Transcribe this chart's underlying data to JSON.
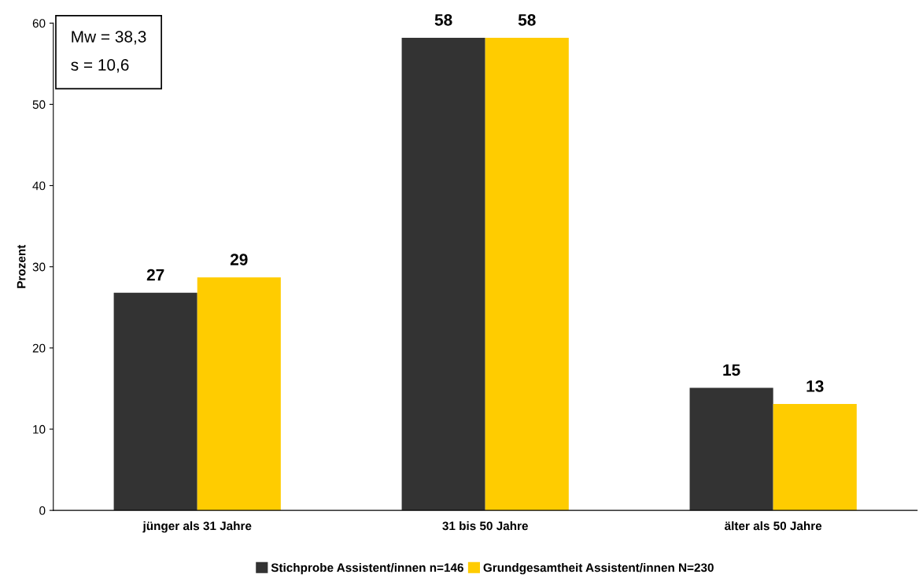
{
  "chart_data": {
    "type": "bar",
    "ylabel": "Prozent",
    "categories": [
      "jünger als 31 Jahre",
      "31 bis 50 Jahre",
      "älter als 50 Jahre"
    ],
    "series": [
      {
        "name": "Stichprobe Assistent/innen n=146",
        "color": "#333333",
        "values": [
          26.8,
          58.2,
          15.1
        ],
        "value_labels": [
          "27",
          "58",
          "15"
        ]
      },
      {
        "name": "Grundgesamtheit Assistent/innen N=230",
        "color": "#ffcc00",
        "values": [
          28.7,
          58.2,
          13.1
        ],
        "value_labels": [
          "29",
          "58",
          "13"
        ]
      }
    ],
    "ylim": [
      0,
      60
    ],
    "yticks": [
      0,
      10,
      20,
      30,
      40,
      50,
      60
    ],
    "grid": false,
    "legend": "bottom",
    "annotations": [
      "Mw = 38,3",
      "s = 10,6"
    ]
  }
}
